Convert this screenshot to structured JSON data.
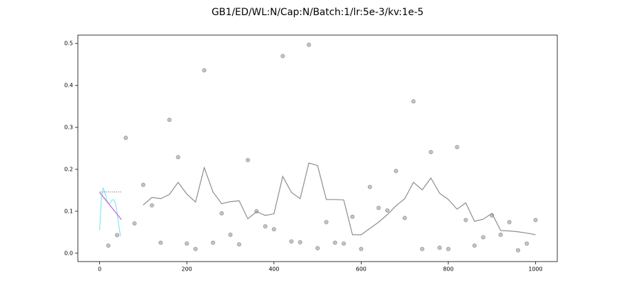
{
  "chart_data": {
    "type": "line",
    "title": "GB1/ED/WL:N/Cap:N/Batch:1/lr:5e-3/kv:1e-5",
    "xlim": [
      -50,
      1050
    ],
    "ylim": [
      -0.02,
      0.52
    ],
    "xticks": [
      0,
      200,
      400,
      600,
      800,
      1000
    ],
    "yticks": [
      {
        "value": 0,
        "label": "0.0"
      },
      0.1,
      0.2,
      0.3,
      0.4,
      0.5
    ],
    "series": [
      {
        "style": "scatter",
        "color": "#a0a0a0",
        "x": [
          20,
          40,
          60,
          80,
          100,
          120,
          140,
          160,
          180,
          200,
          220,
          240,
          260,
          280,
          300,
          320,
          340,
          360,
          380,
          400,
          420,
          440,
          460,
          480,
          500,
          520,
          540,
          560,
          580,
          600,
          620,
          640,
          660,
          680,
          700,
          720,
          740,
          760,
          780,
          800,
          820,
          840,
          860,
          880,
          900,
          920,
          940,
          960,
          980,
          1000
        ],
        "values": [
          0.018,
          0.043,
          0.275,
          0.071,
          0.163,
          0.114,
          0.025,
          0.318,
          0.229,
          0.023,
          0.01,
          0.436,
          0.025,
          0.095,
          0.044,
          0.021,
          0.222,
          0.1,
          0.064,
          0.057,
          0.47,
          0.028,
          0.026,
          0.497,
          0.012,
          0.074,
          0.025,
          0.023,
          0.087,
          0.01,
          0.158,
          0.108,
          0.102,
          0.196,
          0.084,
          0.362,
          0.01,
          0.241,
          0.013,
          0.01,
          0.253,
          0.079,
          0.018,
          0.038,
          0.09,
          0.044,
          0.074,
          0.007,
          0.023,
          0.079
        ]
      },
      {
        "style": "line",
        "color": "#8c8c8c",
        "x": [
          100,
          120,
          140,
          160,
          180,
          200,
          220,
          240,
          260,
          280,
          300,
          320,
          340,
          360,
          380,
          400,
          420,
          440,
          460,
          480,
          500,
          520,
          540,
          560,
          580,
          600,
          620,
          640,
          660,
          680,
          700,
          720,
          740,
          760,
          780,
          800,
          820,
          840,
          860,
          880,
          900,
          920,
          940,
          960,
          980,
          1000
        ],
        "values": [
          0.115,
          0.133,
          0.13,
          0.14,
          0.169,
          0.141,
          0.122,
          0.204,
          0.146,
          0.118,
          0.123,
          0.125,
          0.082,
          0.099,
          0.09,
          0.094,
          0.183,
          0.145,
          0.13,
          0.215,
          0.209,
          0.128,
          0.128,
          0.127,
          0.044,
          0.044,
          0.059,
          0.074,
          0.092,
          0.113,
          0.13,
          0.169,
          0.151,
          0.179,
          0.143,
          0.128,
          0.105,
          0.12,
          0.076,
          0.081,
          0.095,
          0.054,
          0.053,
          0.051,
          0.048,
          0.044
        ]
      },
      {
        "style": "line",
        "color": "#80e8f0",
        "x": [
          0,
          4,
          8,
          12,
          16,
          20,
          24,
          28,
          32,
          36,
          40,
          44,
          48
        ],
        "values": [
          0.055,
          0.13,
          0.155,
          0.145,
          0.128,
          0.118,
          0.12,
          0.126,
          0.128,
          0.12,
          0.098,
          0.065,
          0.04
        ]
      },
      {
        "style": "line",
        "color": "#c060d0",
        "x": [
          0,
          50
        ],
        "values": [
          0.145,
          0.08
        ]
      },
      {
        "style": "dotted",
        "color": "#444444",
        "x": [
          0,
          50
        ],
        "values": [
          0.146,
          0.146
        ]
      }
    ]
  }
}
